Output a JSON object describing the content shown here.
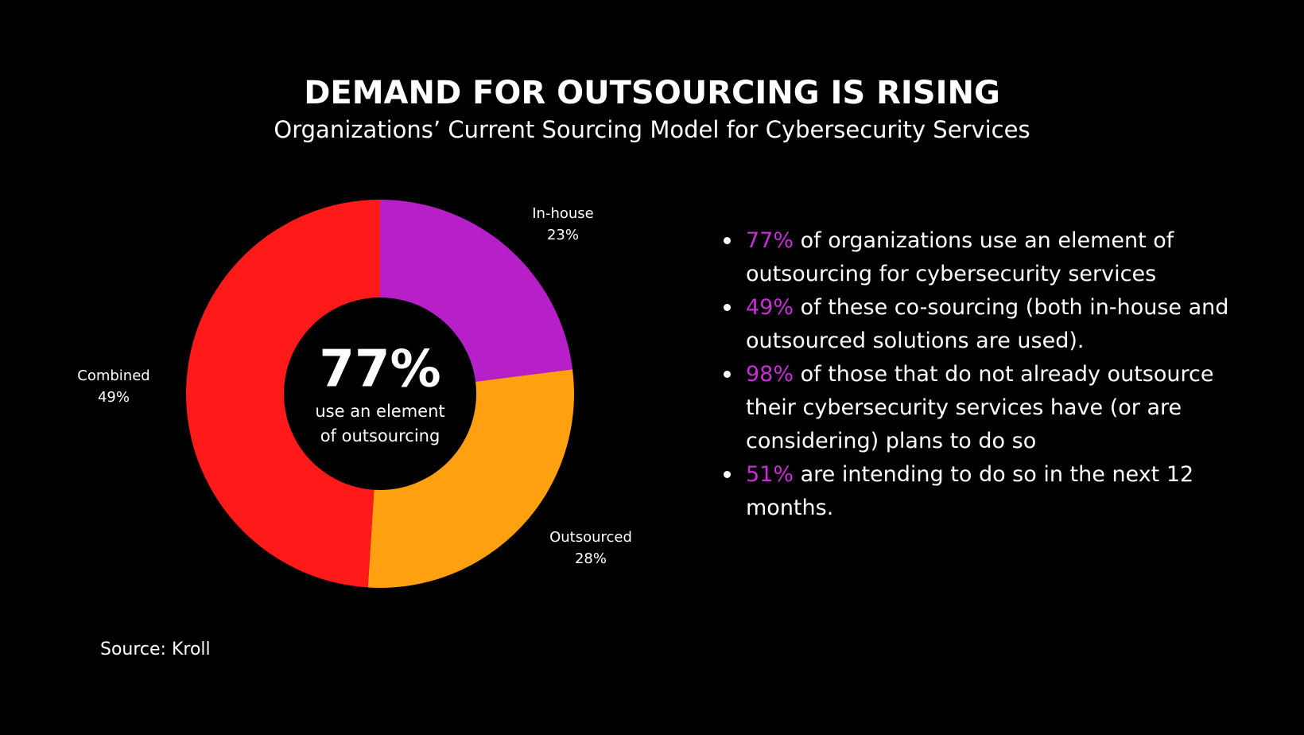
{
  "chart_data": {
    "type": "donut",
    "title": "DEMAND FOR OUTSOURCING IS RISING",
    "subtitle": "Organizations’ Current Sourcing Model for Cybersecurity Services",
    "categories": [
      "In-house",
      "Outsourced",
      "Combined"
    ],
    "values": [
      23,
      28,
      49
    ],
    "value_labels": [
      "23%",
      "28%",
      "49%"
    ],
    "colors": [
      "#b720c9",
      "#ffa010",
      "#ff1a1a"
    ],
    "center_value": "77%",
    "center_label": [
      "use an element",
      "of outsourcing"
    ]
  },
  "source": "Source: Kroll",
  "bullets": [
    {
      "highlight": "77%",
      "text": "of organizations use an element of outsourcing for cybersecurity services"
    },
    {
      "highlight": "49%",
      "text": "of these co-sourcing (both in-house and outsourced solutions are used)."
    },
    {
      "highlight": "98%",
      "text": "of those that do not already outsource their cybersecurity services have (or are considering) plans to do so"
    },
    {
      "highlight": "51%",
      "text": "are intending to do so in the next 12 months."
    }
  ]
}
